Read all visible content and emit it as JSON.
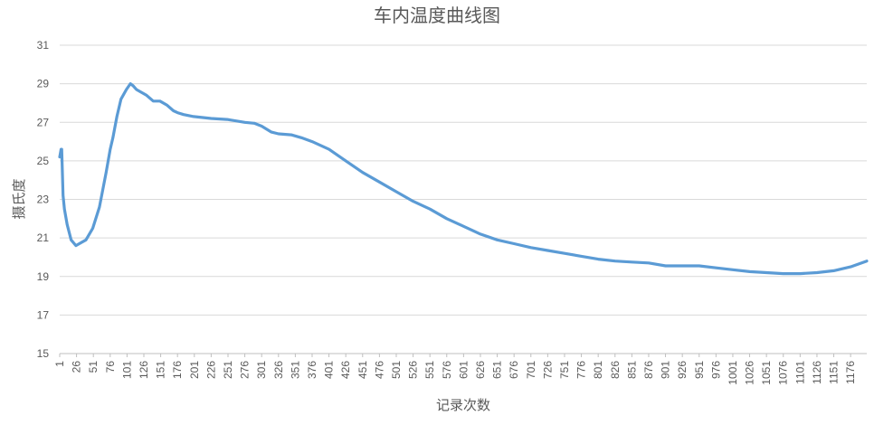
{
  "chart_data": {
    "type": "line",
    "title": "车内温度曲线图",
    "xlabel": "记录次数",
    "ylabel": "摄氏度",
    "ylim": [
      15,
      31
    ],
    "yticks": [
      15,
      17,
      19,
      21,
      23,
      25,
      27,
      29,
      31
    ],
    "xlim": [
      1,
      1200
    ],
    "xticks": [
      1,
      26,
      51,
      76,
      101,
      126,
      151,
      176,
      201,
      226,
      251,
      276,
      301,
      326,
      351,
      376,
      401,
      426,
      451,
      476,
      501,
      526,
      551,
      576,
      601,
      626,
      651,
      676,
      701,
      726,
      751,
      776,
      801,
      826,
      851,
      876,
      901,
      926,
      951,
      976,
      1001,
      1026,
      1051,
      1076,
      1101,
      1126,
      1151,
      1176
    ],
    "grid": true,
    "series": [
      {
        "name": "",
        "color": "#5b9bd5",
        "x": [
          1,
          3,
          4,
          6,
          8,
          12,
          18,
          25,
          30,
          40,
          50,
          60,
          70,
          76,
          80,
          86,
          92,
          100,
          106,
          110,
          115,
          120,
          130,
          140,
          145,
          150,
          160,
          170,
          176,
          185,
          200,
          226,
          250,
          276,
          290,
          301,
          315,
          326,
          345,
          360,
          376,
          401,
          426,
          451,
          476,
          501,
          526,
          551,
          576,
          601,
          626,
          651,
          676,
          701,
          726,
          751,
          776,
          801,
          826,
          851,
          876,
          901,
          926,
          951,
          976,
          1001,
          1026,
          1051,
          1076,
          1101,
          1126,
          1151,
          1176,
          1200
        ],
        "values": [
          25.2,
          25.6,
          25.6,
          23.2,
          22.5,
          21.7,
          20.9,
          20.6,
          20.7,
          20.9,
          21.5,
          22.6,
          24.4,
          25.6,
          26.2,
          27.3,
          28.2,
          28.7,
          29.0,
          28.9,
          28.7,
          28.6,
          28.4,
          28.1,
          28.1,
          28.1,
          27.9,
          27.6,
          27.5,
          27.4,
          27.3,
          27.2,
          27.15,
          27.0,
          26.95,
          26.8,
          26.5,
          26.4,
          26.35,
          26.2,
          26.0,
          25.6,
          25.0,
          24.4,
          23.9,
          23.4,
          22.9,
          22.5,
          22.0,
          21.6,
          21.2,
          20.9,
          20.7,
          20.5,
          20.35,
          20.2,
          20.05,
          19.9,
          19.8,
          19.75,
          19.7,
          19.55,
          19.55,
          19.55,
          19.45,
          19.35,
          19.25,
          19.2,
          19.15,
          19.15,
          19.2,
          19.3,
          19.5,
          19.8
        ]
      }
    ]
  }
}
